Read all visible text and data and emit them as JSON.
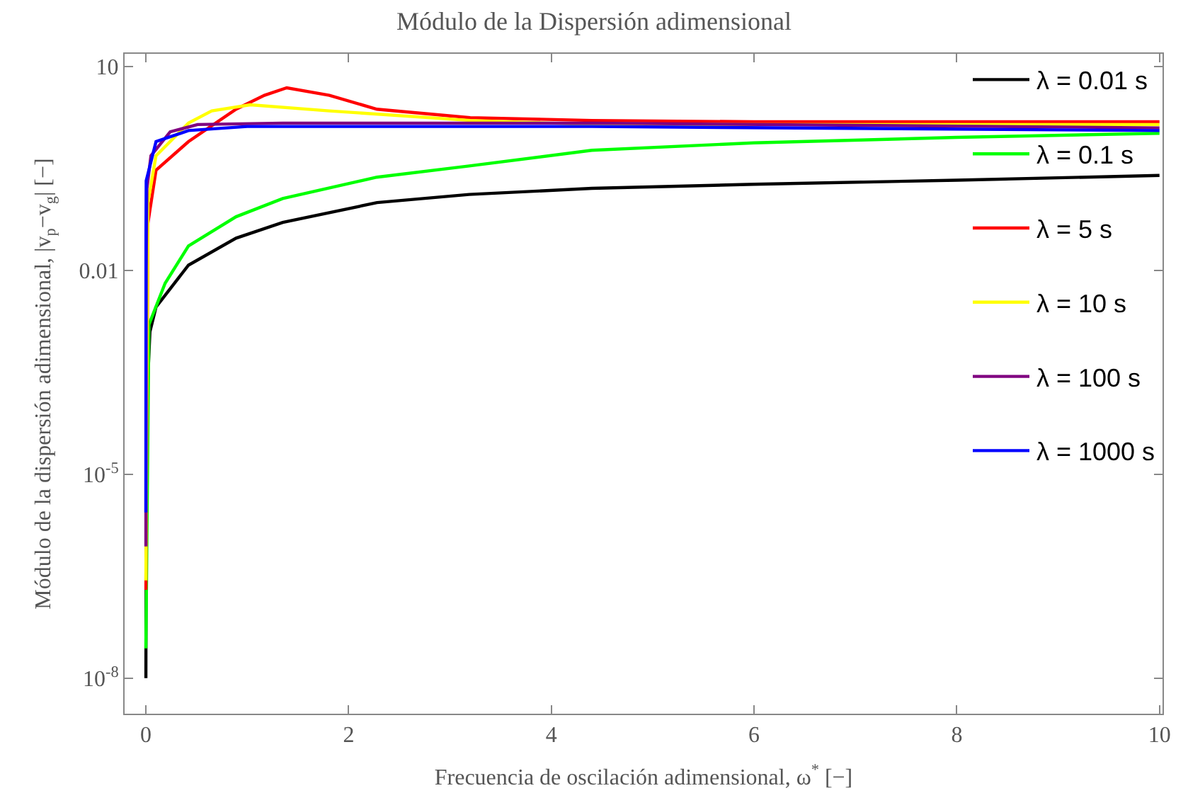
{
  "chart_data": {
    "type": "line",
    "title": "Módulo de la Dispersión adimensional",
    "xlabel": "Frecuencia de oscilación adimensional, ω$^{*}$ [−]",
    "ylabel": "Módulo de la dispersión adimensional, |v$_{p}$−v$_{g}$| [−]",
    "log": "y",
    "grid": false,
    "legend": "top right",
    "marker": "none",
    "line_style": "solid",
    "xlim": [
      -0.21,
      10.03
    ],
    "xticks": [
      0,
      2,
      4,
      6,
      8,
      10
    ],
    "ylim": [
      3e-09,
      15.5
    ],
    "yticks": [
      10,
      0.01,
      {
        "value": 1e-05,
        "label": "10$^{-5}$"
      },
      {
        "value": 1e-08,
        "label": "10$^{-8}$"
      }
    ],
    "series": [
      {
        "name": "λ = 0.01 s",
        "color": "#000000",
        "x": [
          0,
          0.005,
          0.04,
          0.1,
          0.42,
          0.89,
          1.35,
          2.28,
          3.19,
          4.4,
          6,
          8,
          10
        ],
        "values": [
          1e-08,
          8.7e-05,
          0.00126,
          0.0029,
          0.012,
          0.03,
          0.051,
          0.1,
          0.132,
          0.162,
          0.186,
          0.214,
          0.251
        ]
      },
      {
        "name": "λ = 0.1 s",
        "color": "#00ff00",
        "x": [
          0,
          0.03,
          0.19,
          0.42,
          0.89,
          1.35,
          2.28,
          3.19,
          4.4,
          6,
          8,
          10
        ],
        "values": [
          2.75e-08,
          0.0016,
          0.0065,
          0.023,
          0.062,
          0.115,
          0.237,
          0.347,
          0.589,
          0.759,
          0.912,
          1.05
        ]
      },
      {
        "name": "λ = 5 s",
        "color": "#ff0000",
        "x": [
          0,
          0.02,
          0.1,
          0.42,
          0.89,
          1.17,
          1.39,
          1.81,
          2.28,
          3.2,
          4.4,
          6,
          10
        ],
        "values": [
          2e-07,
          0.05,
          0.3,
          0.79,
          2.37,
          3.8,
          4.9,
          3.8,
          2.37,
          1.78,
          1.62,
          1.55,
          1.55
        ]
      },
      {
        "name": "λ = 10 s",
        "color": "#ffff00",
        "x": [
          0,
          0.02,
          0.1,
          0.42,
          0.65,
          1.03,
          1.81,
          3.2,
          4.4,
          10
        ],
        "values": [
          2.75e-07,
          0.1,
          0.49,
          1.48,
          2.24,
          2.75,
          2.24,
          1.62,
          1.41,
          1.41
        ]
      },
      {
        "name": "λ = 100 s",
        "color": "#800080",
        "x": [
          0,
          0.003,
          0.01,
          0.05,
          0.24,
          0.51,
          1.35,
          4.4,
          10
        ],
        "values": [
          8.7e-07,
          0.01,
          0.16,
          0.49,
          1.1,
          1.41,
          1.48,
          1.48,
          1.26
        ]
      },
      {
        "name": "λ = 1000 s",
        "color": "#0000ff",
        "x": [
          0,
          0.001,
          0.003,
          0.1,
          0.42,
          1.0,
          4.4,
          10
        ],
        "values": [
          2.75e-06,
          0.032,
          0.21,
          0.79,
          1.15,
          1.32,
          1.32,
          1.15
        ]
      }
    ]
  }
}
